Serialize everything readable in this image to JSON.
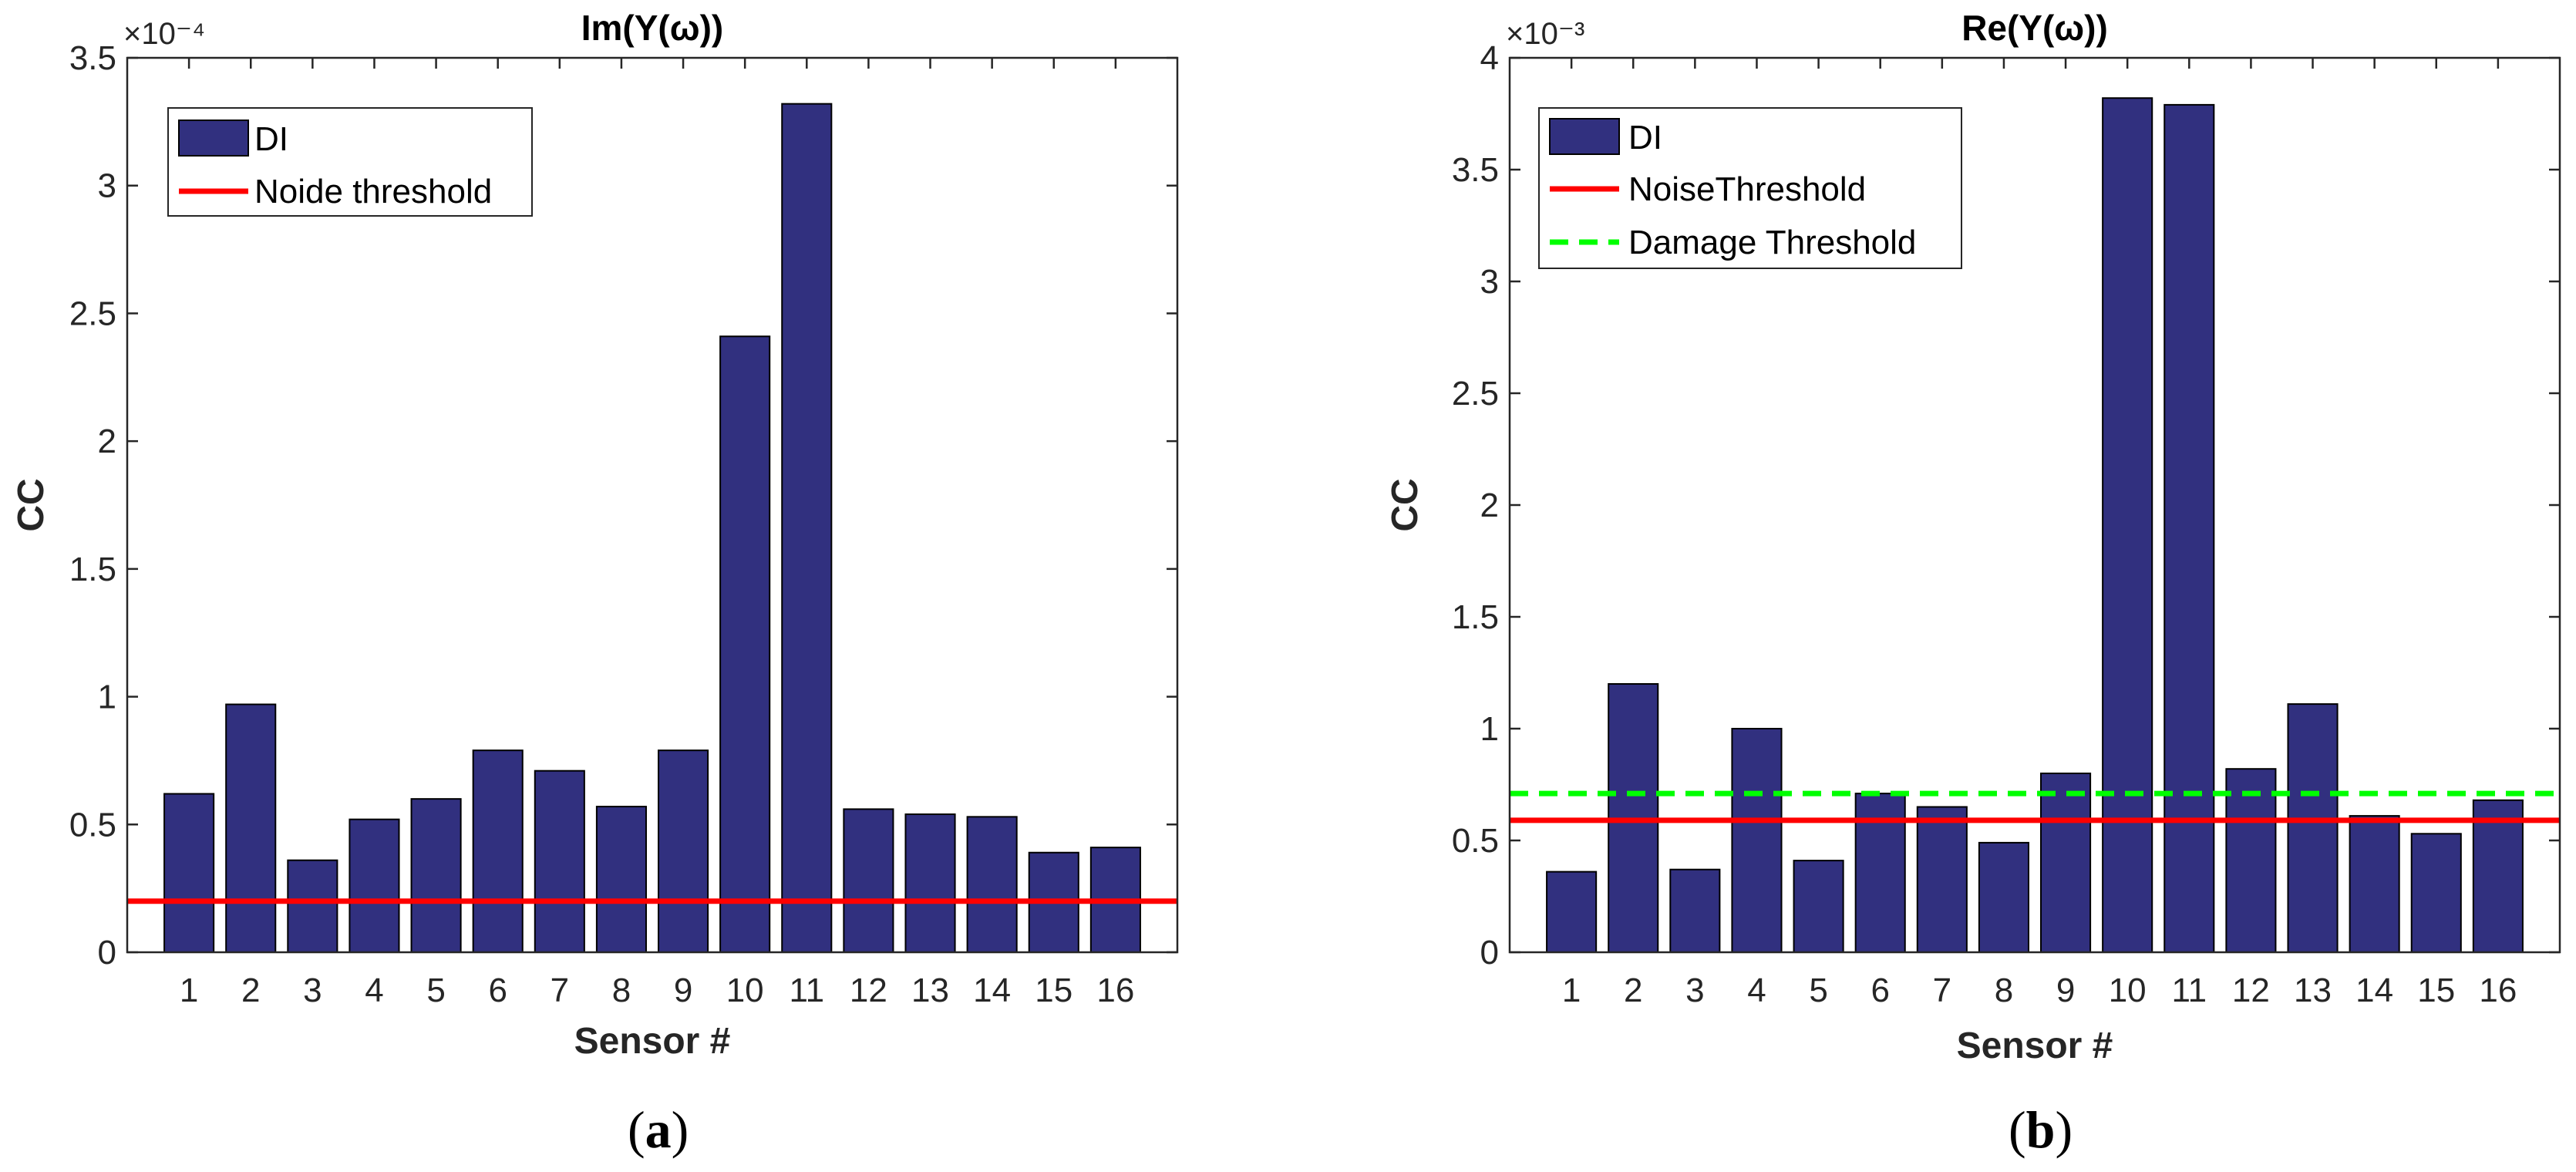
{
  "chart_data": [
    {
      "type": "bar",
      "title": "Im(Y(ω))",
      "xlabel": "Sensor #",
      "ylabel": "CC",
      "exponent_label": "×10⁻⁴",
      "ylim": [
        0,
        3.5
      ],
      "yticks": [
        "0",
        "0.5",
        "1",
        "1.5",
        "2",
        "2.5",
        "3",
        "3.5"
      ],
      "categories": [
        "1",
        "2",
        "3",
        "4",
        "5",
        "6",
        "7",
        "8",
        "9",
        "10",
        "11",
        "12",
        "13",
        "14",
        "15",
        "16"
      ],
      "series": [
        {
          "name": "DI",
          "color": "#31307f",
          "values": [
            0.62,
            0.97,
            0.36,
            0.52,
            0.6,
            0.79,
            0.71,
            0.57,
            0.79,
            2.41,
            3.32,
            0.56,
            0.54,
            0.53,
            0.39,
            0.41
          ]
        }
      ],
      "thresholds": [
        {
          "name": "Noide threshold",
          "value": 0.2,
          "color": "#ff0000",
          "style": "solid"
        }
      ],
      "legend_location": "top-left",
      "caption_letter": "a"
    },
    {
      "type": "bar",
      "title": "Re(Y(ω))",
      "xlabel": "Sensor #",
      "ylabel": "CC",
      "exponent_label": "×10⁻³",
      "ylim": [
        0,
        4
      ],
      "yticks": [
        "0",
        "0.5",
        "1",
        "1.5",
        "2",
        "2.5",
        "3",
        "3.5",
        "4"
      ],
      "categories": [
        "1",
        "2",
        "3",
        "4",
        "5",
        "6",
        "7",
        "8",
        "9",
        "10",
        "11",
        "12",
        "13",
        "14",
        "15",
        "16"
      ],
      "series": [
        {
          "name": "DI",
          "color": "#31307f",
          "values": [
            0.36,
            1.2,
            0.37,
            1.0,
            0.41,
            0.71,
            0.65,
            0.49,
            0.8,
            3.82,
            3.79,
            0.82,
            1.11,
            0.61,
            0.53,
            0.68
          ]
        }
      ],
      "thresholds": [
        {
          "name": "NoiseThreshold",
          "value": 0.59,
          "color": "#ff0000",
          "style": "solid"
        },
        {
          "name": "Damage Threshold",
          "value": 0.71,
          "color": "#00ff00",
          "style": "dashed"
        }
      ],
      "legend_location": "top-left",
      "caption_letter": "b"
    }
  ]
}
